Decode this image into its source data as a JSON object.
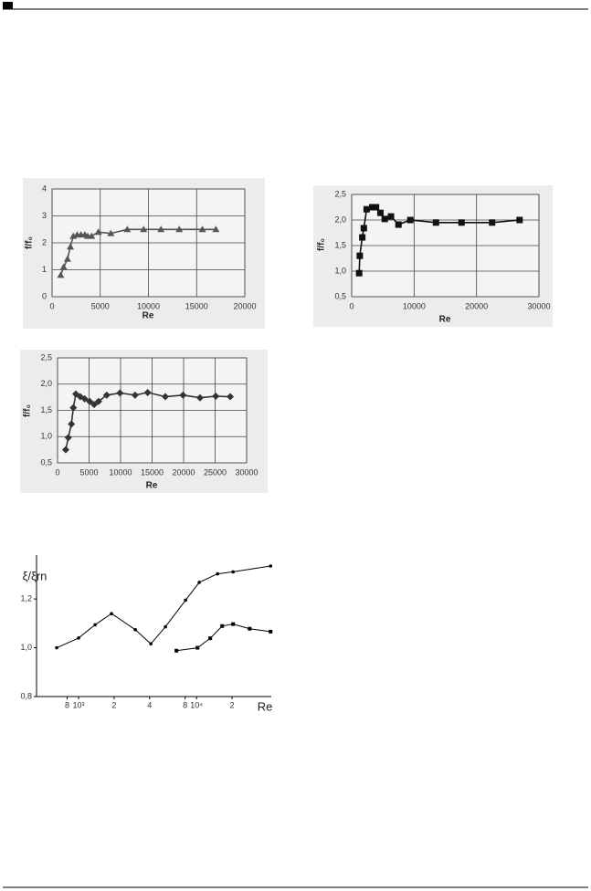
{
  "chart_data": [
    {
      "type": "line",
      "x_label": "Re",
      "y_label": "f/f₀",
      "grid": true,
      "marker": "triangle",
      "color": "#555555",
      "xlim": [
        0,
        20000
      ],
      "xticks": [
        0,
        5000,
        10000,
        15000,
        20000
      ],
      "ylim": [
        0,
        4
      ],
      "yticks": [
        0,
        1,
        2,
        3,
        4
      ],
      "x": [
        900,
        1200,
        1600,
        1900,
        2200,
        2600,
        3000,
        3400,
        3700,
        4100,
        4800,
        6100,
        7800,
        9500,
        11300,
        13200,
        15600,
        17000
      ],
      "values": [
        0.8,
        1.1,
        1.4,
        1.85,
        2.25,
        2.3,
        2.3,
        2.3,
        2.25,
        2.25,
        2.4,
        2.35,
        2.5,
        2.5,
        2.5,
        2.5,
        2.5,
        2.5
      ]
    },
    {
      "type": "line",
      "x_label": "Re",
      "y_label": "f/f₀",
      "grid": true,
      "marker": "square",
      "color": "#111111",
      "xlim": [
        0,
        30000
      ],
      "xticks": [
        0,
        10000,
        20000,
        30000
      ],
      "ylim": [
        0.5,
        2.5
      ],
      "yticks": [
        {
          "value": 0.5,
          "label": "0,5"
        },
        {
          "value": 1,
          "label": "1,0"
        },
        {
          "value": 1.5,
          "label": "1,5"
        },
        {
          "value": 2,
          "label": "2,0"
        },
        {
          "value": 2.5,
          "label": "2,5"
        }
      ],
      "x": [
        1200,
        1300,
        1700,
        1950,
        2400,
        3300,
        3900,
        4600,
        5300,
        6300,
        7500,
        9400,
        13500,
        17600,
        22500,
        26900
      ],
      "values": [
        0.96,
        1.3,
        1.66,
        1.84,
        2.21,
        2.25,
        2.25,
        2.14,
        2.02,
        2.07,
        1.91,
        2.0,
        1.95,
        1.95,
        1.95,
        2.0
      ]
    },
    {
      "type": "line",
      "x_label": "Re",
      "y_label": "f/f₀",
      "grid": true,
      "marker": "diamond",
      "color": "#333333",
      "xlim": [
        0,
        30000
      ],
      "xticks": [
        0,
        5000,
        10000,
        15000,
        20000,
        25000,
        30000
      ],
      "ylim": [
        0.5,
        2.5
      ],
      "yticks": [
        {
          "value": 0.5,
          "label": "0,5"
        },
        {
          "value": 1,
          "label": "1,0"
        },
        {
          "value": 1.5,
          "label": "1,5"
        },
        {
          "value": 2,
          "label": "2,0"
        },
        {
          "value": 2.5,
          "label": "2,5"
        }
      ],
      "x": [
        1300,
        1700,
        2200,
        2500,
        2900,
        3600,
        4300,
        5100,
        5800,
        6500,
        7800,
        9900,
        12300,
        14300,
        17100,
        19900,
        22600,
        25100,
        27400
      ],
      "values": [
        0.75,
        0.98,
        1.24,
        1.55,
        1.81,
        1.76,
        1.72,
        1.67,
        1.61,
        1.67,
        1.79,
        1.83,
        1.79,
        1.84,
        1.76,
        1.79,
        1.74,
        1.77,
        1.76
      ]
    },
    {
      "type": "line",
      "x_label": "Re",
      "y_label": "ξ/ξrn",
      "grid": false,
      "xscale": "log",
      "xlim": [
        440,
        43000
      ],
      "xticks": [
        {
          "value": 800,
          "label": "8"
        },
        {
          "value": 1000,
          "label": "10³"
        },
        {
          "value": 2000,
          "label": "2"
        },
        {
          "value": 4000,
          "label": "4"
        },
        {
          "value": 8000,
          "label": "8"
        },
        {
          "value": 10000,
          "label": "10⁴"
        },
        {
          "value": 20000,
          "label": "2"
        }
      ],
      "ylim": [
        0.8,
        1.38
      ],
      "yticks": [
        {
          "value": 0.8,
          "label": "0,8"
        },
        {
          "value": 1,
          "label": "1,0"
        },
        {
          "value": 1.2,
          "label": "1,2"
        }
      ],
      "series": [
        {
          "marker": "circle",
          "color": "#000000",
          "x": [
            652,
            1000,
            1379,
            1901,
            3027,
            4096,
            5445,
            8070,
            10540,
            15070,
            20400,
            42400
          ],
          "values": [
            1.0,
            1.04,
            1.094,
            1.14,
            1.074,
            1.016,
            1.086,
            1.195,
            1.268,
            1.303,
            1.311,
            1.335
          ]
        },
        {
          "marker": "square",
          "color": "#000000",
          "x": [
            6750,
            10190,
            13060,
            16480,
            20400,
            28200,
            42400
          ],
          "values": [
            0.988,
            1.0,
            1.039,
            1.089,
            1.097,
            1.078,
            1.066
          ]
        }
      ]
    }
  ]
}
